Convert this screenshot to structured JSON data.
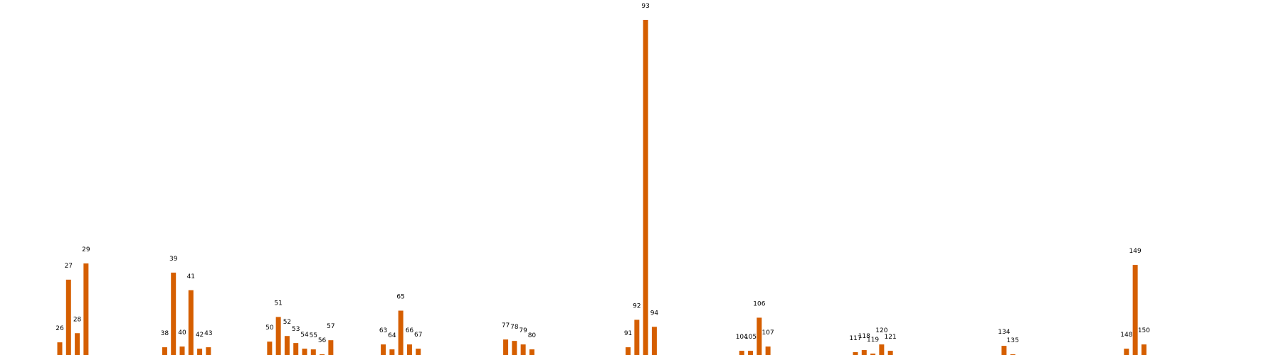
{
  "chart_data": {
    "type": "bar",
    "title": "",
    "xlabel": "",
    "ylabel": "",
    "grid": false,
    "axes_visible": false,
    "bar_color": "#d55e00",
    "label_color": "#000000",
    "background": "#ffffff",
    "ylim": [
      0,
      480
    ],
    "x_range": [
      20,
      153
    ],
    "categories": [
      "26",
      "27",
      "28",
      "29",
      "38",
      "39",
      "40",
      "41",
      "42",
      "43",
      "50",
      "51",
      "52",
      "53",
      "54",
      "55",
      "56",
      "57",
      "63",
      "64",
      "65",
      "66",
      "67",
      "77",
      "78",
      "79",
      "80",
      "91",
      "92",
      "93",
      "94",
      "104",
      "105",
      "106",
      "107",
      "117",
      "118",
      "119",
      "120",
      "121",
      "134",
      "135",
      "148",
      "149",
      "150"
    ],
    "x": [
      26,
      27,
      28,
      29,
      38,
      39,
      40,
      41,
      42,
      43,
      50,
      51,
      52,
      53,
      54,
      55,
      56,
      57,
      63,
      64,
      65,
      66,
      67,
      77,
      78,
      79,
      80,
      91,
      92,
      93,
      94,
      104,
      105,
      106,
      107,
      117,
      118,
      119,
      120,
      121,
      134,
      135,
      148,
      149,
      150
    ],
    "values": [
      18,
      107,
      31,
      130,
      11,
      117,
      12,
      92,
      9,
      11,
      19,
      54,
      27,
      17,
      9,
      8,
      1,
      21,
      15,
      8,
      63,
      15,
      9,
      22,
      20,
      15,
      8,
      11,
      50,
      476,
      40,
      6,
      6,
      53,
      12,
      4,
      7,
      2,
      15,
      6,
      13,
      1,
      9,
      128,
      15
    ]
  }
}
